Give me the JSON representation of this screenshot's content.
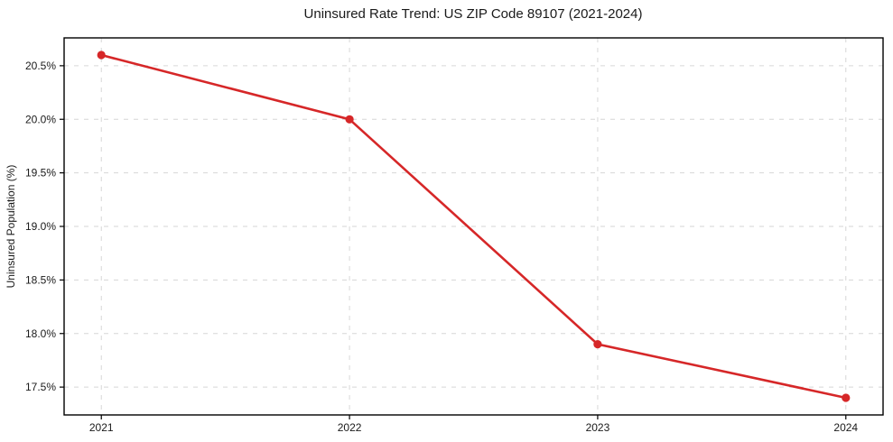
{
  "chart_data": {
    "type": "line",
    "title": "Uninsured Rate Trend: US ZIP Code 89107 (2021-2024)",
    "xlabel": "",
    "ylabel": "Uninsured Population (%)",
    "x": [
      2021,
      2022,
      2023,
      2024
    ],
    "values": [
      20.6,
      20.0,
      17.9,
      17.4
    ],
    "xlim": [
      2020.85,
      2024.15
    ],
    "ylim": [
      17.24,
      20.76
    ],
    "xticks": {
      "values": [
        2021,
        2022,
        2023,
        2024
      ],
      "labels": [
        "2021",
        "2022",
        "2023",
        "2024"
      ]
    },
    "yticks": {
      "values": [
        17.5,
        18.0,
        18.5,
        19.0,
        19.5,
        20.0,
        20.5
      ],
      "labels": [
        "17.5%",
        "18.0%",
        "18.5%",
        "19.0%",
        "19.5%",
        "20.0%",
        "20.5%"
      ]
    },
    "grid": true,
    "grid_style": "dashed",
    "legend": "none",
    "marker": "circle",
    "colors": {
      "line": "#d62728",
      "marker": "#d62728",
      "grid": "#d6d6d6",
      "axis": "#000000",
      "text": "#1a1a1a",
      "background": "#ffffff"
    }
  }
}
